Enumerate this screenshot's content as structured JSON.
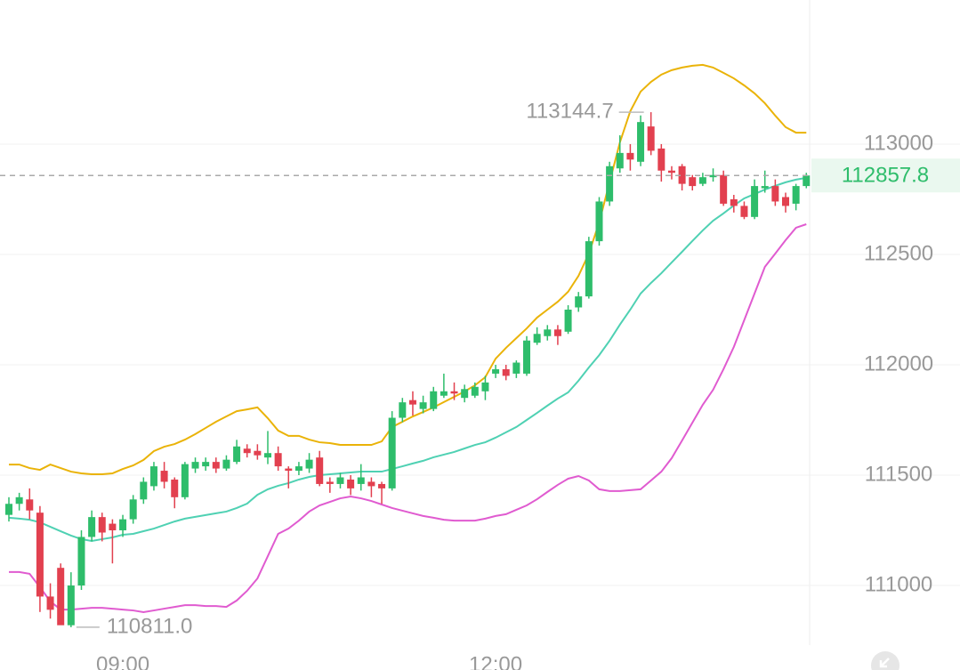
{
  "chart_data": {
    "type": "candlestick",
    "categories": [
      null,
      null,
      null,
      null,
      null,
      null,
      null,
      null,
      null,
      null,
      null,
      "09:00",
      null,
      null,
      null,
      null,
      null,
      null,
      null,
      null,
      null,
      null,
      null,
      null,
      null,
      null,
      null,
      null,
      null,
      null,
      null,
      null,
      null,
      null,
      null,
      null,
      null,
      null,
      null,
      null,
      null,
      null,
      null,
      null,
      null,
      null,
      null,
      "12:00",
      null,
      null,
      null,
      null,
      null,
      null,
      null,
      null,
      null,
      null,
      null,
      null,
      null,
      null,
      null,
      null,
      null,
      null,
      null,
      null,
      null,
      null,
      null,
      null,
      null,
      null,
      null,
      null,
      null,
      null
    ],
    "open": [
      111320,
      111370,
      111390,
      111330,
      110950,
      111080,
      110820,
      111000,
      111220,
      111310,
      111280,
      111250,
      111300,
      111390,
      111450,
      111520,
      111480,
      111400,
      111530,
      111540,
      111560,
      111530,
      111560,
      111620,
      111610,
      111580,
      111600,
      111530,
      111520,
      111530,
      111580,
      111470,
      111460,
      111480,
      111460,
      111470,
      111460,
      111440,
      111760,
      111840,
      111800,
      111800,
      111860,
      111880,
      111850,
      111860,
      111880,
      111960,
      111980,
      111960,
      111960,
      112100,
      112130,
      112160,
      112150,
      112260,
      112310,
      112560,
      112740,
      112890,
      112960,
      112920,
      113080,
      112980,
      112880,
      112900,
      112850,
      112820,
      112850,
      112860,
      112750,
      112720,
      112670,
      112800,
      112810,
      112760,
      112730,
      112810
    ],
    "high": [
      111400,
      111420,
      111440,
      111360,
      111010,
      111100,
      111060,
      111250,
      111340,
      111330,
      111300,
      111320,
      111410,
      111490,
      111560,
      111560,
      111490,
      111560,
      111580,
      111580,
      111580,
      111590,
      111660,
      111640,
      111640,
      111700,
      111630,
      111540,
      111560,
      111600,
      111610,
      111490,
      111510,
      111500,
      111550,
      111490,
      111470,
      111790,
      111850,
      111880,
      111860,
      111900,
      111960,
      111920,
      111910,
      111920,
      111950,
      112000,
      112000,
      112020,
      112130,
      112170,
      112180,
      112180,
      112270,
      112330,
      112580,
      112760,
      112920,
      113040,
      113000,
      113130,
      113144.7,
      113000,
      112900,
      112910,
      112860,
      112870,
      112890,
      112880,
      112770,
      112740,
      112840,
      112880,
      112840,
      112780,
      112820,
      112870
    ],
    "low": [
      111290,
      111340,
      111300,
      110880,
      110850,
      110830,
      110811,
      110980,
      111200,
      111200,
      111100,
      111220,
      111280,
      111370,
      111430,
      111440,
      111350,
      111390,
      111510,
      111520,
      111510,
      111520,
      111550,
      111580,
      111570,
      111550,
      111520,
      111440,
      111500,
      111510,
      111450,
      111420,
      111440,
      111410,
      111430,
      111400,
      111370,
      111430,
      111740,
      111770,
      111780,
      111790,
      111850,
      111840,
      111830,
      111850,
      111840,
      111940,
      111930,
      111940,
      111950,
      112090,
      112110,
      112090,
      112140,
      112240,
      112300,
      112540,
      112720,
      112870,
      112880,
      112900,
      112950,
      112830,
      112840,
      112790,
      112790,
      112810,
      112830,
      112720,
      112690,
      112660,
      112660,
      112780,
      112720,
      112690,
      112700,
      112800
    ],
    "close": [
      111370,
      111400,
      111340,
      110950,
      110890,
      110820,
      111000,
      111220,
      111310,
      111240,
      111250,
      111300,
      111390,
      111470,
      111540,
      111470,
      111400,
      111550,
      111560,
      111560,
      111530,
      111570,
      111630,
      111600,
      111590,
      111600,
      111540,
      111520,
      111540,
      111570,
      111460,
      111460,
      111490,
      111440,
      111490,
      111450,
      111440,
      111760,
      111830,
      111820,
      111830,
      111880,
      111880,
      111870,
      111890,
      111900,
      111920,
      111980,
      111950,
      112010,
      112110,
      112140,
      112160,
      112130,
      112250,
      112310,
      112560,
      112740,
      112900,
      112960,
      112930,
      113100,
      112970,
      112880,
      112870,
      112820,
      112810,
      112850,
      112860,
      112730,
      112720,
      112670,
      112810,
      112810,
      112740,
      112720,
      112810,
      112857.8
    ],
    "up_color": "#2ebd6b",
    "down_color": "#e2404f",
    "overlays": [
      {
        "color": "#eab308",
        "values": [
          111548,
          111548,
          111532,
          111524,
          111548,
          111532,
          111516,
          111508,
          111504,
          111504,
          111508,
          111528,
          111544,
          111569,
          111609,
          111629,
          111641,
          111661,
          111686,
          111714,
          111742,
          111766,
          111790,
          111798,
          111807,
          111758,
          111702,
          111678,
          111678,
          111661,
          111649,
          111645,
          111637,
          111637,
          111637,
          111637,
          111653,
          111718,
          111742,
          111766,
          111786,
          111807,
          111831,
          111855,
          111879,
          111907,
          111944,
          112028,
          112077,
          112121,
          112165,
          112214,
          112250,
          112286,
          112331,
          112403,
          112504,
          112645,
          112827,
          113008,
          113149,
          113238,
          113282,
          113315,
          113335,
          113347,
          113355,
          113359,
          113347,
          113323,
          113298,
          113266,
          113230,
          113185,
          113129,
          113077,
          113052,
          113052
        ]
      },
      {
        "color": "#4fd1b3",
        "values": [
          111307,
          111303,
          111298,
          111286,
          111266,
          111246,
          111226,
          111210,
          111202,
          111210,
          111218,
          111230,
          111234,
          111246,
          111258,
          111274,
          111290,
          111303,
          111311,
          111319,
          111327,
          111335,
          111351,
          111371,
          111411,
          111436,
          111452,
          111464,
          111480,
          111492,
          111500,
          111504,
          111508,
          111512,
          111516,
          111516,
          111516,
          111528,
          111540,
          111553,
          111565,
          111581,
          111593,
          111605,
          111621,
          111637,
          111649,
          111670,
          111694,
          111718,
          111750,
          111782,
          111815,
          111847,
          111875,
          111928,
          111988,
          112044,
          112109,
          112182,
          112250,
          112323,
          112371,
          112415,
          112464,
          112512,
          112561,
          112609,
          112653,
          112686,
          112722,
          112754,
          112774,
          112794,
          112811,
          112827,
          112839,
          112847
        ]
      },
      {
        "color": "#e05bd0",
        "values": [
          111061,
          111061,
          111053,
          110992,
          110928,
          110891,
          110891,
          110895,
          110899,
          110899,
          110895,
          110891,
          110887,
          110879,
          110887,
          110895,
          110903,
          110911,
          110911,
          110907,
          110907,
          110903,
          110932,
          110976,
          111032,
          111133,
          111234,
          111258,
          111294,
          111335,
          111363,
          111379,
          111395,
          111403,
          111395,
          111383,
          111367,
          111351,
          111339,
          111327,
          111315,
          111307,
          111298,
          111294,
          111294,
          111294,
          111303,
          111315,
          111323,
          111343,
          111363,
          111391,
          111424,
          111456,
          111484,
          111496,
          111476,
          111436,
          111428,
          111428,
          111432,
          111436,
          111476,
          111516,
          111577,
          111657,
          111738,
          111819,
          111887,
          111980,
          112081,
          112202,
          112323,
          112444,
          112504,
          112565,
          112621,
          112637
        ]
      }
    ],
    "ylim": [
      110730,
      113653
    ],
    "yticks": [
      111000,
      111500,
      112000,
      112500,
      113000
    ],
    "grid": true,
    "high_marker": {
      "value": 113144.7,
      "label": "113144.7"
    },
    "low_marker": {
      "value": 110811,
      "label": "110811.0"
    },
    "last_price": {
      "value": 112857.8,
      "label": "112857.8"
    }
  }
}
